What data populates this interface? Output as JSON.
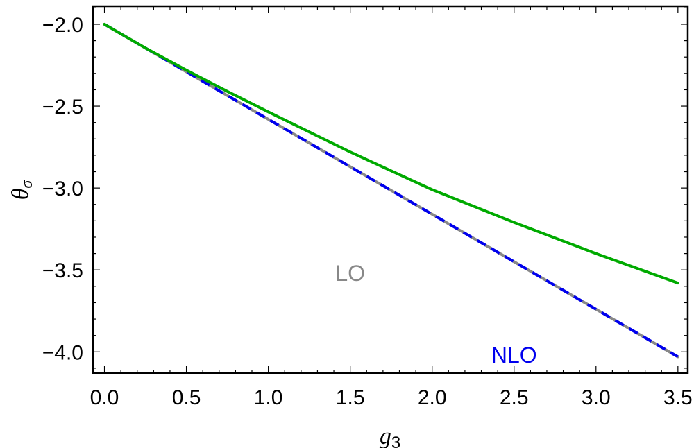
{
  "chart_data": {
    "type": "line",
    "xlabel": "g",
    "xlabel_sub": "3",
    "ylabel": "θ",
    "ylabel_sub": "σ",
    "xlim": [
      -0.07,
      3.56
    ],
    "ylim": [
      -4.13,
      -1.89
    ],
    "x_ticks": [
      0.0,
      0.5,
      1.0,
      1.5,
      2.0,
      2.5,
      3.0,
      3.5
    ],
    "x_tick_labels": [
      "0.0",
      "0.5",
      "1.0",
      "1.5",
      "2.0",
      "2.5",
      "3.0",
      "3.5"
    ],
    "y_ticks": [
      -2.0,
      -2.5,
      -3.0,
      -3.5,
      -4.0
    ],
    "y_tick_labels": [
      "−2.0",
      "−2.5",
      "−3.0",
      "−3.5",
      "−4.0"
    ],
    "grid": false,
    "series": [
      {
        "name": "LO",
        "color": "#888888",
        "style": "solid",
        "x": [
          0.0,
          0.5,
          1.0,
          1.5,
          2.0,
          2.5,
          3.0,
          3.5
        ],
        "y": [
          -2.0,
          -2.29,
          -2.58,
          -2.87,
          -3.16,
          -3.45,
          -3.74,
          -4.03
        ]
      },
      {
        "name": "NLO",
        "color": "#0000ee",
        "style": "dashed",
        "x": [
          0.0,
          0.5,
          1.0,
          1.5,
          2.0,
          2.5,
          3.0,
          3.5
        ],
        "y": [
          -2.0,
          -2.29,
          -2.58,
          -2.87,
          -3.16,
          -3.45,
          -3.74,
          -4.03
        ]
      },
      {
        "color": "#00aa00",
        "style": "solid",
        "x": [
          0.0,
          0.25,
          0.5,
          0.75,
          1.0,
          1.5,
          2.0,
          2.5,
          3.0,
          3.5
        ],
        "y": [
          -2.0,
          -2.145,
          -2.28,
          -2.41,
          -2.535,
          -2.78,
          -3.01,
          -3.21,
          -3.4,
          -3.58
        ]
      }
    ],
    "annotations": [
      {
        "text": "LO",
        "x": 1.5,
        "y": -3.52,
        "color": "#888888",
        "bold": false
      },
      {
        "text": "NLO",
        "x": 2.5,
        "y": -4.02,
        "color": "#0000ee",
        "bold": false
      }
    ]
  }
}
